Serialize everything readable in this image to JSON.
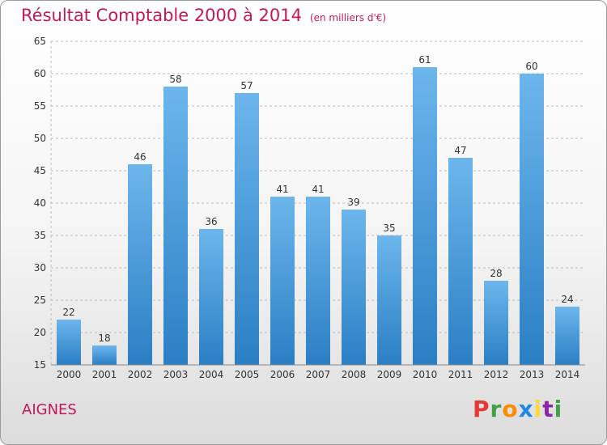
{
  "title": "Résultat Comptable 2000 à 2014",
  "subtitle": "(en milliers d'€)",
  "place": "AIGNES",
  "logo": {
    "letters": [
      "P",
      "r",
      "o",
      "x",
      "i",
      "t",
      "i"
    ],
    "colors": [
      "#e53935",
      "#43a047",
      "#fb8c00",
      "#1e88e5",
      "#fdd835",
      "#8e24aa",
      "#43a047"
    ]
  },
  "colors": {
    "bar_light": "#6cb6ec",
    "bar_dark": "#2a7fc4",
    "grid": "#bdbdbd",
    "title": "#c2185b"
  },
  "chart_data": {
    "type": "bar",
    "categories": [
      "2000",
      "2001",
      "2002",
      "2003",
      "2004",
      "2005",
      "2006",
      "2007",
      "2008",
      "2009",
      "2010",
      "2011",
      "2012",
      "2013",
      "2014"
    ],
    "values": [
      22,
      18,
      46,
      58,
      36,
      57,
      41,
      41,
      39,
      35,
      61,
      47,
      28,
      60,
      24
    ],
    "ylim": [
      15,
      65
    ],
    "yticks": [
      15,
      20,
      25,
      30,
      35,
      40,
      45,
      50,
      55,
      60,
      65
    ],
    "grid": true
  }
}
